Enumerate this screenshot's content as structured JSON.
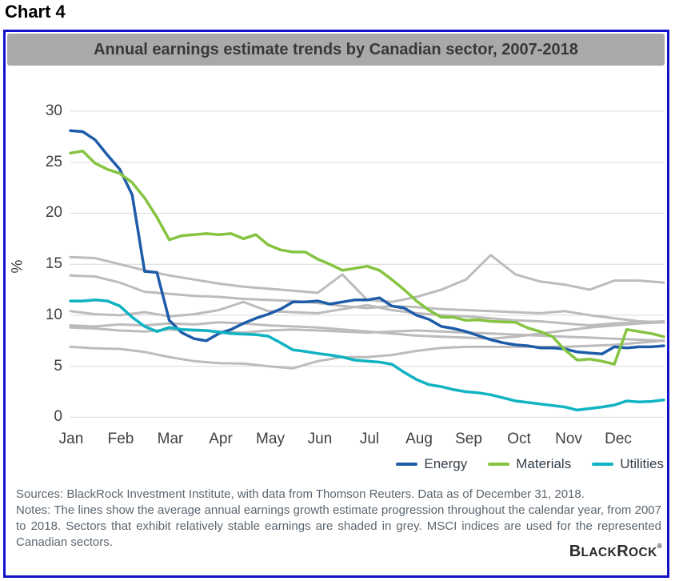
{
  "page_title": "Chart 4",
  "panel": {
    "title": "Annual earnings estimate trends by Canadian sector, 2007-2018"
  },
  "chart_data": {
    "type": "line",
    "title": "Annual earnings estimate trends by Canadian sector, 2007-2018",
    "xlabel": "",
    "ylabel": "%",
    "ylim": [
      0,
      30
    ],
    "yticks": [
      0,
      5,
      10,
      15,
      20,
      25,
      30
    ],
    "grid": true,
    "gridline_color": "#d9d9d9",
    "legend_position": "bottom-right",
    "x_months": [
      "Jan",
      "Feb",
      "Mar",
      "Apr",
      "May",
      "Jun",
      "Jul",
      "Aug",
      "Sep",
      "Oct",
      "Nov",
      "Dec"
    ],
    "series": [
      {
        "name": "stable-sector-grey-1",
        "color": "#bcbcbc",
        "width": 3,
        "legend": false,
        "values": [
          15.7,
          15.6,
          15.0,
          14.4,
          13.9,
          13.5,
          13.1,
          12.8,
          12.6,
          12.4,
          12.2,
          14.0,
          11.5,
          11.3,
          11.8,
          12.5,
          13.5,
          15.9,
          14.0,
          13.3,
          13.0,
          12.5,
          13.4,
          13.4,
          13.2
        ]
      },
      {
        "name": "stable-sector-grey-2",
        "color": "#bcbcbc",
        "width": 3,
        "legend": false,
        "values": [
          13.9,
          13.8,
          13.2,
          12.3,
          12.1,
          11.9,
          11.8,
          11.6,
          11.5,
          11.4,
          11.2,
          10.9,
          10.7,
          10.9,
          10.8,
          10.6,
          10.5,
          10.4,
          10.3,
          10.2,
          10.4,
          10.0,
          9.7,
          9.4,
          9.3
        ]
      },
      {
        "name": "stable-sector-grey-3",
        "color": "#bcbcbc",
        "width": 3,
        "legend": false,
        "values": [
          10.4,
          10.1,
          10.0,
          10.3,
          9.9,
          10.1,
          10.5,
          11.3,
          10.4,
          10.3,
          10.2,
          10.6,
          11.0,
          10.5,
          10.2,
          10.0,
          9.9,
          9.7,
          9.5,
          9.4,
          9.2,
          9.0,
          9.2,
          9.3,
          9.4
        ]
      },
      {
        "name": "stable-sector-grey-4",
        "color": "#bcbcbc",
        "width": 3,
        "legend": false,
        "values": [
          9.0,
          8.9,
          9.1,
          9.0,
          9.2,
          9.1,
          9.3,
          9.2,
          9.0,
          8.9,
          8.8,
          8.6,
          8.4,
          8.2,
          8.0,
          7.9,
          7.8,
          7.7,
          7.9,
          8.2,
          8.5,
          8.8,
          9.0,
          9.2,
          9.3
        ]
      },
      {
        "name": "stable-sector-grey-5",
        "color": "#bcbcbc",
        "width": 3,
        "legend": false,
        "values": [
          8.8,
          8.7,
          8.5,
          8.4,
          8.6,
          8.5,
          8.4,
          8.3,
          8.5,
          8.6,
          8.5,
          8.4,
          8.3,
          8.4,
          8.5,
          8.4,
          8.3,
          8.2,
          8.1,
          8.0,
          7.9,
          7.8,
          7.7,
          7.6,
          7.5
        ]
      },
      {
        "name": "stable-sector-grey-6",
        "color": "#bcbcbc",
        "width": 3,
        "legend": false,
        "values": [
          6.9,
          6.75,
          6.7,
          6.4,
          5.9,
          5.5,
          5.3,
          5.25,
          5.0,
          4.8,
          5.5,
          5.9,
          5.9,
          6.1,
          6.5,
          6.8,
          6.9,
          6.9,
          6.9,
          6.9,
          6.9,
          7.0,
          7.1,
          7.3,
          7.5
        ]
      },
      {
        "name": "Energy",
        "color": "#1e5caa",
        "width": 3.5,
        "legend": true,
        "values": [
          28.1,
          28.0,
          27.2,
          25.7,
          24.3,
          21.8,
          14.3,
          14.2,
          9.5,
          8.3,
          7.7,
          7.5,
          8.2,
          8.6,
          9.2,
          9.7,
          10.1,
          10.6,
          11.3,
          11.3,
          11.4,
          11.1,
          11.3,
          11.5,
          11.5,
          11.7,
          10.9,
          10.7,
          10.0,
          9.6,
          8.9,
          8.7,
          8.4,
          8.0,
          7.6,
          7.3,
          7.1,
          7.0,
          6.8,
          6.8,
          6.7,
          6.4,
          6.3,
          6.2,
          6.9,
          6.8,
          6.9,
          6.9,
          7.0
        ]
      },
      {
        "name": "Materials",
        "color": "#85c441",
        "width": 3.5,
        "legend": true,
        "values": [
          25.9,
          26.1,
          24.9,
          24.3,
          23.9,
          23.0,
          21.5,
          19.6,
          17.4,
          17.8,
          17.9,
          18.0,
          17.9,
          18.0,
          17.5,
          17.9,
          16.9,
          16.4,
          16.2,
          16.2,
          15.5,
          15.0,
          14.4,
          14.6,
          14.8,
          14.4,
          13.5,
          12.5,
          11.4,
          10.5,
          9.8,
          9.8,
          9.5,
          9.55,
          9.4,
          9.35,
          9.3,
          8.75,
          8.4,
          7.9,
          6.6,
          5.6,
          5.7,
          5.5,
          5.2,
          8.6,
          8.4,
          8.2,
          7.9
        ]
      },
      {
        "name": "Utilities",
        "color": "#0fb3c2",
        "width": 3.5,
        "legend": true,
        "values": [
          11.4,
          11.4,
          11.5,
          11.4,
          10.9,
          9.8,
          8.9,
          8.4,
          8.8,
          8.6,
          8.55,
          8.5,
          8.35,
          8.2,
          8.15,
          8.1,
          7.95,
          7.3,
          6.6,
          6.45,
          6.25,
          6.1,
          5.9,
          5.6,
          5.5,
          5.4,
          5.2,
          4.4,
          3.7,
          3.2,
          3.0,
          2.7,
          2.5,
          2.4,
          2.2,
          1.9,
          1.6,
          1.45,
          1.3,
          1.15,
          1.0,
          0.7,
          0.85,
          1.0,
          1.2,
          1.6,
          1.5,
          1.55,
          1.7
        ]
      }
    ]
  },
  "footer": {
    "sources": "Sources: BlackRock Investment Institute, with data from Thomson Reuters. Data as of December 31, 2018.",
    "notes": "Notes: The lines show the average annual earnings growth estimate progression throughout the calendar year, from 2007 to 2018. Sectors that exhibit relatively stable earnings are shaded in grey. MSCI indices are used for the represented Canadian sectors.",
    "brand_big1": "B",
    "brand_rest1": "LACK",
    "brand_big2": "R",
    "brand_rest2": "OCK",
    "brand_mark": "®"
  }
}
